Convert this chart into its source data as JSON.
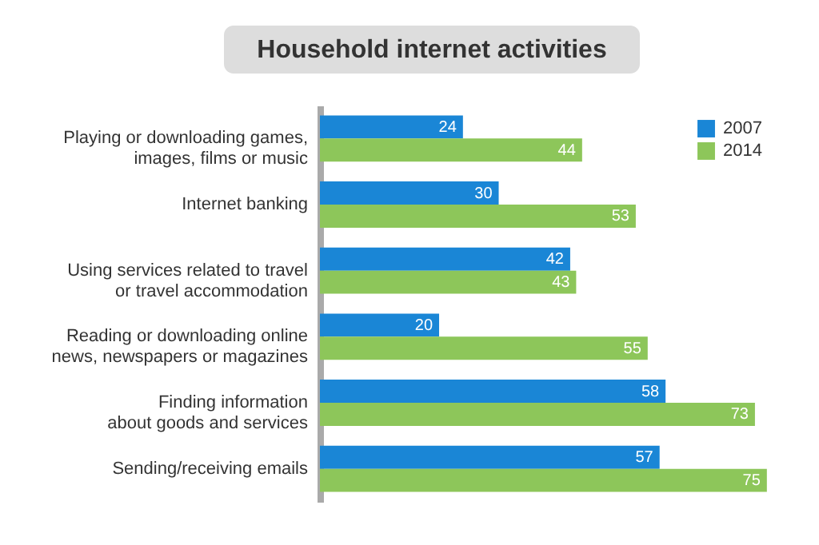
{
  "chart_data": {
    "type": "bar",
    "orientation": "horizontal",
    "title": "Household internet activities",
    "categories": [
      "Playing or downloading games,\nimages, films or music",
      "Internet banking",
      "Using services related to travel\nor travel accommodation",
      "Reading or downloading online\nnews, newspapers or magazines",
      "Finding information\nabout goods and services",
      "Sending/receiving emails"
    ],
    "series": [
      {
        "name": "2007",
        "color": "#1a86d6",
        "values": [
          24,
          30,
          42,
          20,
          58,
          57
        ]
      },
      {
        "name": "2014",
        "color": "#8dc65a",
        "values": [
          44,
          53,
          43,
          55,
          73,
          75
        ]
      }
    ],
    "data_labels": true,
    "legend": "top right",
    "grid": false
  }
}
